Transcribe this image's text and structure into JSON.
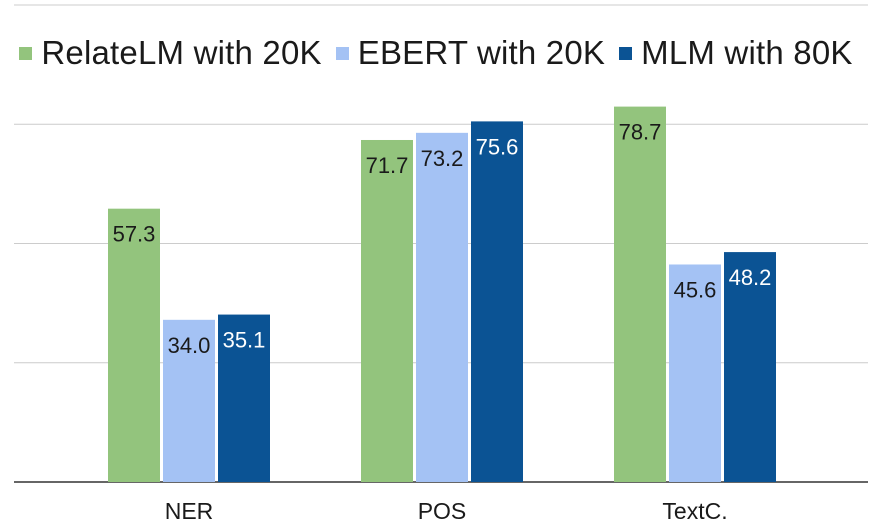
{
  "chart_data": {
    "type": "bar",
    "categories": [
      "NER",
      "POS",
      "TextC."
    ],
    "series": [
      {
        "name": "RelateLM with 20K",
        "color": "#93c47d",
        "values": [
          57.3,
          71.7,
          78.7
        ],
        "labels": [
          "57.3",
          "71.7",
          "78.7"
        ],
        "label_color": "#1a1a1a"
      },
      {
        "name": "EBERT with 20K",
        "color": "#a4c2f4",
        "values": [
          34.0,
          73.2,
          45.6
        ],
        "labels": [
          "34.0",
          "73.2",
          "45.6"
        ],
        "label_color": "#1a1a1a"
      },
      {
        "name": "MLM with 80K",
        "color": "#0b5394",
        "values": [
          35.1,
          75.6,
          48.2
        ],
        "labels": [
          "35.1",
          "75.6",
          "48.2"
        ],
        "label_color": "#ffffff"
      }
    ],
    "ylim": [
      0,
      100
    ],
    "grid": true,
    "legend_position": "top",
    "title": "",
    "xlabel": "",
    "ylabel": ""
  }
}
